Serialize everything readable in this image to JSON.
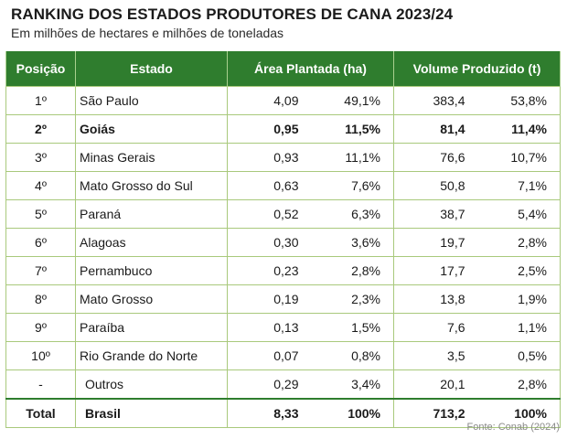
{
  "title": "RANKING DOS ESTADOS PRODUTORES DE CANA 2023/24",
  "subtitle": "Em milhões de hectares e milhões de toneladas",
  "headers": {
    "posicao": "Posição",
    "estado": "Estado",
    "area": "Área Plantada (ha)",
    "volume": "Volume Produzido (t)"
  },
  "rows": [
    {
      "pos": "1º",
      "estado": "São Paulo",
      "area": "4,09",
      "area_pct": "49,1%",
      "vol": "383,4",
      "vol_pct": "53,8%"
    },
    {
      "pos": "2º",
      "estado": "Goiás",
      "area": "0,95",
      "area_pct": "11,5%",
      "vol": "81,4",
      "vol_pct": "11,4%"
    },
    {
      "pos": "3º",
      "estado": "Minas Gerais",
      "area": "0,93",
      "area_pct": "11,1%",
      "vol": "76,6",
      "vol_pct": "10,7%"
    },
    {
      "pos": "4º",
      "estado": "Mato Grosso do Sul",
      "area": "0,63",
      "area_pct": "7,6%",
      "vol": "50,8",
      "vol_pct": "7,1%"
    },
    {
      "pos": "5º",
      "estado": "Paraná",
      "area": "0,52",
      "area_pct": "6,3%",
      "vol": "38,7",
      "vol_pct": "5,4%"
    },
    {
      "pos": "6º",
      "estado": "Alagoas",
      "area": "0,30",
      "area_pct": "3,6%",
      "vol": "19,7",
      "vol_pct": "2,8%"
    },
    {
      "pos": "7º",
      "estado": "Pernambuco",
      "area": "0,23",
      "area_pct": "2,8%",
      "vol": "17,7",
      "vol_pct": "2,5%"
    },
    {
      "pos": "8º",
      "estado": "Mato Grosso",
      "area": "0,19",
      "area_pct": "2,3%",
      "vol": "13,8",
      "vol_pct": "1,9%"
    },
    {
      "pos": "9º",
      "estado": "Paraíba",
      "area": "0,13",
      "area_pct": "1,5%",
      "vol": "7,6",
      "vol_pct": "1,1%"
    },
    {
      "pos": "10º",
      "estado": "Rio Grande do Norte",
      "area": "0,07",
      "area_pct": "0,8%",
      "vol": "3,5",
      "vol_pct": "0,5%"
    },
    {
      "pos": "-",
      "estado": "Outros",
      "area": "0,29",
      "area_pct": "3,4%",
      "vol": "20,1",
      "vol_pct": "2,8%"
    }
  ],
  "total": {
    "pos": "Total",
    "estado": "Brasil",
    "area": "8,33",
    "area_pct": "100%",
    "vol": "713,2",
    "vol_pct": "100%"
  },
  "source": "Fonte: Conab (2024)",
  "colors": {
    "header_bg": "#2f7d2e",
    "grid": "#a9c97c"
  }
}
